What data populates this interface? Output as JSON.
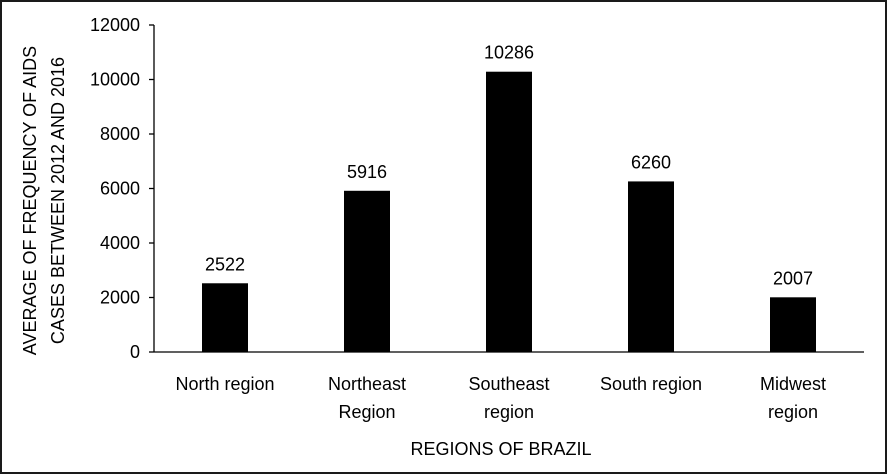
{
  "chart_data": {
    "type": "bar",
    "categories": [
      [
        "North region"
      ],
      [
        "Northeast",
        "Region"
      ],
      [
        "Southeast",
        "region"
      ],
      [
        "South region"
      ],
      [
        "Midwest",
        "region"
      ]
    ],
    "values": [
      2522,
      5916,
      10286,
      6260,
      2007
    ],
    "data_labels": [
      "2522",
      "5916",
      "10286",
      "6260",
      "2007"
    ],
    "xlabel": "REGIONS OF BRAZIL",
    "ylabel": [
      "AVERAGE OF FREQUENCY OF AIDS",
      "CASES  BETWEEN 2012 AND 2016"
    ],
    "ylim": [
      0,
      12000
    ],
    "yticks": [
      0,
      2000,
      4000,
      6000,
      8000,
      10000,
      12000
    ],
    "grid": false,
    "legend": "none",
    "bar_color": "#000000"
  }
}
